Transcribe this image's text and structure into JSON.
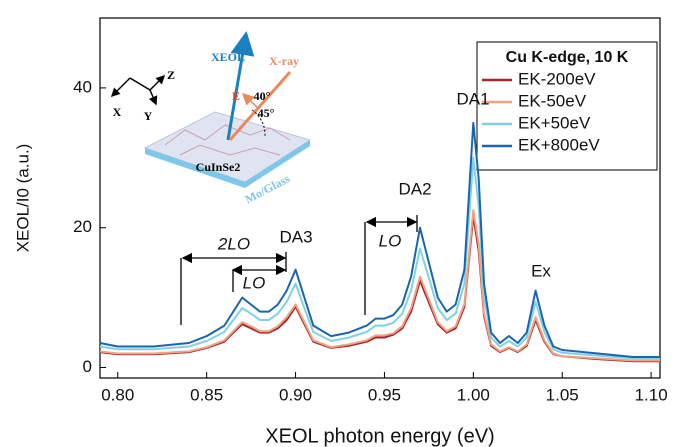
{
  "chart_data": {
    "type": "line",
    "x_label": "XEOL photon energy (eV)",
    "y_label": "XEOL/I0 (a.u.)",
    "xlim": [
      0.79,
      1.105
    ],
    "ylim": [
      -1.5,
      50
    ],
    "xticks": [
      {
        "value": 0.8,
        "label": "0.80"
      },
      {
        "value": 0.85,
        "label": "0.85"
      },
      {
        "value": 0.9,
        "label": "0.90"
      },
      {
        "value": 0.95,
        "label": "0.95"
      },
      {
        "value": 1.0,
        "label": "1.00"
      },
      {
        "value": 1.05,
        "label": "1.05"
      },
      {
        "value": 1.1,
        "label": "1.10"
      }
    ],
    "yticks": [
      0,
      20,
      40
    ],
    "legend_title": "Cu K-edge, 10 K",
    "legend_position": "upper right",
    "x": [
      0.79,
      0.8,
      0.82,
      0.84,
      0.85,
      0.86,
      0.865,
      0.87,
      0.875,
      0.88,
      0.885,
      0.89,
      0.895,
      0.9,
      0.905,
      0.91,
      0.92,
      0.93,
      0.94,
      0.945,
      0.95,
      0.955,
      0.96,
      0.965,
      0.97,
      0.975,
      0.98,
      0.985,
      0.99,
      0.995,
      1.0,
      1.003,
      1.006,
      1.01,
      1.015,
      1.02,
      1.025,
      1.03,
      1.035,
      1.04,
      1.045,
      1.05,
      1.07,
      1.09,
      1.105
    ],
    "series": [
      {
        "name": "EK-200eV",
        "color": "#a3262b",
        "values": [
          2.2,
          1.9,
          1.9,
          2.2,
          2.8,
          3.7,
          5,
          6.2,
          5.6,
          5,
          5,
          5.6,
          6.8,
          8.7,
          6.2,
          3.7,
          2.8,
          3.1,
          3.7,
          4.3,
          4.3,
          4.7,
          5.6,
          8,
          12.4,
          9.3,
          6.2,
          5,
          5.6,
          8.7,
          21.7,
          16.7,
          7.4,
          3.1,
          2.2,
          2.8,
          2.2,
          3.1,
          6.8,
          3.7,
          1.9,
          1.6,
          1.2,
          0.9,
          0.9
        ]
      },
      {
        "name": "EK-50eV",
        "color": "#f2a183",
        "values": [
          2.3,
          2,
          2,
          2.3,
          2.9,
          3.9,
          5.2,
          6.5,
          5.9,
          5.2,
          5.2,
          5.9,
          7.2,
          9,
          6.5,
          3.9,
          2.9,
          3.3,
          3.9,
          4.6,
          4.6,
          4.9,
          5.9,
          8.5,
          13,
          9.8,
          6.5,
          5.2,
          5.9,
          9.1,
          22.5,
          17.6,
          7.8,
          3.3,
          2.3,
          2.9,
          2.3,
          3.3,
          7.2,
          3.9,
          2,
          1.6,
          1.3,
          1,
          1
        ]
      },
      {
        "name": "EK+50eV",
        "color": "#7fd2e4",
        "values": [
          3,
          2.6,
          2.6,
          3,
          3.8,
          5.1,
          6.8,
          8.5,
          7.7,
          6.8,
          6.8,
          7.7,
          9.4,
          12,
          8.5,
          5.1,
          3.8,
          4.3,
          5.1,
          6,
          6,
          6.4,
          7.7,
          11,
          17,
          12.8,
          8.5,
          6.8,
          7.7,
          12,
          30,
          23,
          10.2,
          4.3,
          3,
          3.8,
          3,
          4.3,
          9.4,
          5.1,
          2.6,
          2.1,
          1.7,
          1.3,
          1.3
        ]
      },
      {
        "name": "EK+800eV",
        "color": "#1c64ad",
        "values": [
          3.5,
          3,
          3,
          3.5,
          4.5,
          6,
          8,
          10,
          9,
          8,
          8,
          9,
          11,
          14,
          10,
          6,
          4.5,
          5,
          6,
          7,
          7,
          7.5,
          9,
          13,
          20,
          15,
          10,
          8,
          9,
          14,
          35,
          27,
          12,
          5,
          3.5,
          4.5,
          3.5,
          5,
          11,
          6,
          3,
          2.5,
          2,
          1.5,
          1.5
        ]
      }
    ],
    "annotations": [
      "DA1",
      "DA2",
      "DA3",
      "Ex",
      "2LO",
      "LO",
      "LO"
    ],
    "inset_labels": [
      "XEOL",
      "X-ray",
      "40°",
      "45°",
      "E",
      "CuInSe2",
      "Mo/Glass",
      "X",
      "Y",
      "Z"
    ]
  }
}
